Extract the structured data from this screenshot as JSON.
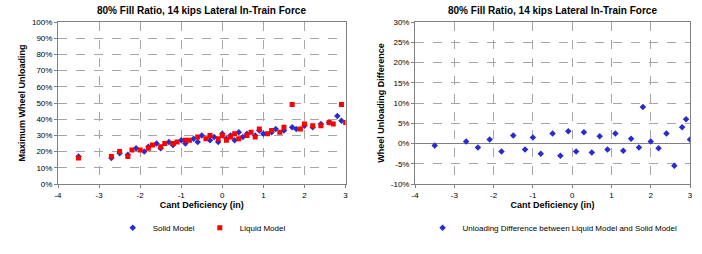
{
  "chart_data": [
    {
      "type": "scatter",
      "title": "80% Fill Ratio, 14 kips Lateral In-Train Force",
      "x_label": "Cant Deficiency (in)",
      "y_label": "Maximum Wheel Unloading",
      "xlim": [
        -4,
        3
      ],
      "xticks": [
        -4,
        -3,
        -2,
        -1,
        0,
        1,
        2,
        3
      ],
      "ylim": [
        0,
        100
      ],
      "yticks": [
        {
          "value": 0,
          "label": "0%"
        },
        {
          "value": 10,
          "label": "10%"
        },
        {
          "value": 20,
          "label": "20%"
        },
        {
          "value": 30,
          "label": "30%"
        },
        {
          "value": 40,
          "label": "40%"
        },
        {
          "value": 50,
          "label": "50%"
        },
        {
          "value": 60,
          "label": "60%"
        },
        {
          "value": 70,
          "label": "70%"
        },
        {
          "value": 80,
          "label": "80%"
        },
        {
          "value": 90,
          "label": "90%"
        },
        {
          "value": 100,
          "label": "100%"
        }
      ],
      "grid": true,
      "legend": "bottom",
      "series": [
        {
          "name": "Solid Model",
          "color": "#2a2ad0",
          "marker": "diamond",
          "x": [
            -3.5,
            -2.7,
            -2.5,
            -2.3,
            -2.1,
            -1.9,
            -1.8,
            -1.6,
            -1.5,
            -1.3,
            -1.2,
            -1.0,
            -0.9,
            -0.7,
            -0.6,
            -0.5,
            -0.3,
            -0.2,
            -0.1,
            0,
            0.1,
            0.2,
            0.3,
            0.4,
            0.5,
            0.6,
            0.8,
            0.9,
            1.0,
            1.2,
            1.3,
            1.5,
            1.7,
            1.8,
            2.0,
            2.2,
            2.4,
            2.6,
            2.8,
            2.9
          ],
          "values": [
            17,
            16,
            19,
            18,
            22,
            20,
            23,
            25,
            22,
            26,
            24,
            27,
            25,
            28,
            26,
            30,
            27,
            29,
            26,
            31,
            28,
            30,
            27,
            32,
            29,
            31,
            30,
            33,
            31,
            32,
            34,
            33,
            35,
            34,
            36,
            35,
            37,
            38,
            42,
            39
          ]
        },
        {
          "name": "Liquid Model",
          "color": "#ff0000",
          "marker": "square",
          "x": [
            -3.5,
            -2.7,
            -2.5,
            -2.3,
            -2.2,
            -2.0,
            -1.8,
            -1.7,
            -1.5,
            -1.4,
            -1.2,
            -1.1,
            -0.9,
            -0.8,
            -0.6,
            -0.4,
            -0.3,
            -0.1,
            0,
            0.1,
            0.2,
            0.3,
            0.4,
            0.6,
            0.7,
            0.8,
            0.9,
            1.1,
            1.2,
            1.4,
            1.5,
            1.7,
            1.9,
            2.0,
            2.2,
            2.4,
            2.6,
            2.7,
            2.9,
            3.0
          ],
          "values": [
            16,
            17,
            20,
            17,
            21,
            21,
            22,
            24,
            23,
            25,
            25,
            26,
            27,
            27,
            29,
            28,
            30,
            28,
            30,
            27,
            29,
            31,
            28,
            30,
            32,
            29,
            34,
            31,
            33,
            32,
            35,
            49,
            34,
            37,
            36,
            36,
            38,
            37,
            49,
            38
          ]
        }
      ]
    },
    {
      "type": "scatter",
      "title": "80% Fill Ratio, 14 kips Lateral In-Train Force",
      "x_label": "Cant Deficiency (in)",
      "y_label": "Wheel Unloading Difference",
      "xlim": [
        -4,
        3
      ],
      "xticks": [
        -4,
        -3,
        -2,
        -1,
        0,
        1,
        2,
        3
      ],
      "ylim": [
        -10,
        30
      ],
      "yticks": [
        {
          "value": -10,
          "label": "-10%"
        },
        {
          "value": -5,
          "label": "-5%"
        },
        {
          "value": 0,
          "label": "0%"
        },
        {
          "value": 5,
          "label": "5%"
        },
        {
          "value": 10,
          "label": "10%"
        },
        {
          "value": 15,
          "label": "15%"
        },
        {
          "value": 20,
          "label": "20%"
        },
        {
          "value": 25,
          "label": "25%"
        },
        {
          "value": 30,
          "label": "30%"
        }
      ],
      "grid": true,
      "legend": "bottom",
      "series": [
        {
          "name": "Unloading Difference between Liquid Model and Solid Model",
          "color": "#2a2ad0",
          "marker": "diamond",
          "x": [
            -3.5,
            -2.7,
            -2.4,
            -2.1,
            -1.8,
            -1.5,
            -1.2,
            -1.0,
            -0.8,
            -0.5,
            -0.3,
            -0.1,
            0.1,
            0.3,
            0.5,
            0.7,
            0.9,
            1.1,
            1.3,
            1.5,
            1.7,
            1.8,
            2.0,
            2.2,
            2.4,
            2.6,
            2.8,
            2.9,
            3.0
          ],
          "values": [
            -0.5,
            0.5,
            -1,
            1,
            -2,
            2,
            -1.5,
            1.5,
            -2.5,
            2.5,
            -3,
            3,
            -2,
            2.8,
            -2.2,
            1.8,
            -1.5,
            2.5,
            -1.8,
            1.2,
            -1,
            9,
            0.5,
            -1.2,
            2.5,
            -5.5,
            4,
            6,
            1
          ]
        }
      ]
    }
  ]
}
